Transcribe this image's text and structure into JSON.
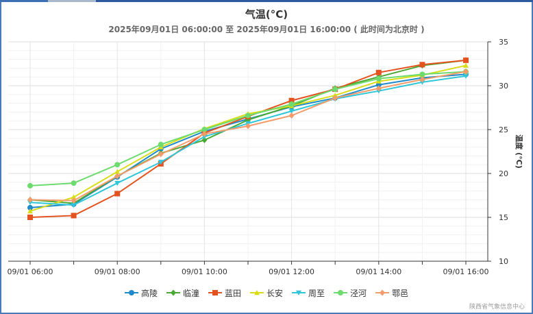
{
  "title": "气温(°C)",
  "subtitle": "2025年09月01日 06:00:00 至 2025年09月01日 16:00:00 ( 此时间为北京时 )",
  "credit": "陕西省气象信息中心",
  "chart_data": {
    "type": "line",
    "title": "气温(°C)",
    "ylabel": "温度 (°C)",
    "ylim": [
      10,
      35
    ],
    "yticks": [
      10,
      15,
      20,
      25,
      30,
      35
    ],
    "x": [
      "09/01 06:00",
      "09/01 07:00",
      "09/01 08:00",
      "09/01 09:00",
      "09/01 10:00",
      "09/01 11:00",
      "09/01 12:00",
      "09/01 13:00",
      "09/01 14:00",
      "09/01 15:00",
      "09/01 16:00"
    ],
    "xtick_labels": [
      "09/01 06:00",
      "09/01 08:00",
      "09/01 10:00",
      "09/01 12:00",
      "09/01 14:00",
      "09/01 16:00"
    ],
    "y_axis_position": "right",
    "legend_position": "bottom",
    "grid": true,
    "series": [
      {
        "name": "高陵",
        "color": "#1f8ac9",
        "marker": "circle",
        "values": [
          16.1,
          16.5,
          19.6,
          22.8,
          24.8,
          26.2,
          27.6,
          28.6,
          30.1,
          30.9,
          31.3
        ]
      },
      {
        "name": "临潼",
        "color": "#48a832",
        "marker": "diamond",
        "values": [
          17.0,
          16.6,
          19.7,
          22.3,
          23.8,
          26.1,
          27.7,
          29.7,
          31.0,
          32.3,
          32.9
        ]
      },
      {
        "name": "蓝田",
        "color": "#e4531f",
        "marker": "square",
        "values": [
          15.0,
          15.2,
          17.7,
          21.1,
          24.6,
          26.5,
          28.3,
          29.6,
          31.5,
          32.4,
          32.9
        ]
      },
      {
        "name": "长安",
        "color": "#d9dd16",
        "marker": "triangle",
        "values": [
          15.7,
          17.3,
          20.2,
          23.0,
          25.1,
          26.8,
          27.7,
          28.9,
          30.5,
          31.2,
          32.3
        ]
      },
      {
        "name": "周至",
        "color": "#2ec6d8",
        "marker": "triangle-down",
        "values": [
          16.7,
          16.4,
          18.9,
          21.3,
          24.2,
          25.7,
          27.1,
          28.5,
          29.4,
          30.4,
          31.1
        ]
      },
      {
        "name": "泾河",
        "color": "#6ddb6d",
        "marker": "circle",
        "values": [
          18.6,
          18.9,
          21.0,
          23.3,
          25.0,
          26.6,
          27.9,
          29.6,
          30.8,
          31.3,
          31.6
        ]
      },
      {
        "name": "鄠邑",
        "color": "#f49b6b",
        "marker": "diamond",
        "values": [
          17.0,
          16.9,
          19.7,
          22.2,
          24.5,
          25.4,
          26.6,
          28.6,
          29.7,
          30.7,
          31.6
        ]
      }
    ]
  }
}
